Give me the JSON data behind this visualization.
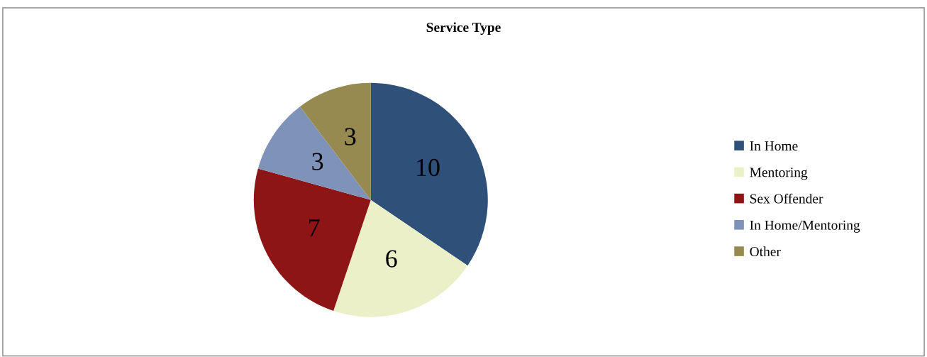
{
  "chart_data": {
    "type": "pie",
    "title": "Service Type",
    "categories": [
      "In Home",
      "Mentoring",
      "Sex Offender",
      "In Home/Mentoring",
      "Other"
    ],
    "values": [
      10,
      6,
      7,
      3,
      3
    ],
    "colors": [
      "#2e5079",
      "#ebf0c8",
      "#8e1515",
      "#7f93b8",
      "#968a50"
    ],
    "data_labels": true,
    "legend": "right"
  }
}
